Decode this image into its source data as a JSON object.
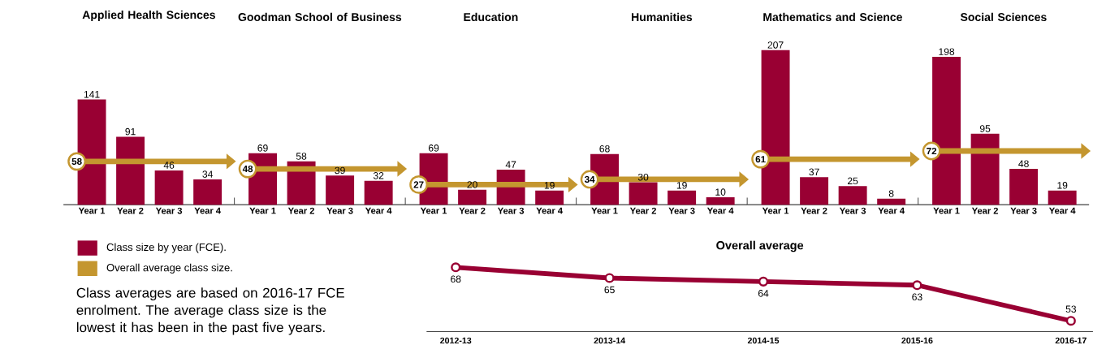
{
  "chart_data": [
    {
      "type": "bar",
      "title": "Applied Health Sciences",
      "categories": [
        "Year 1",
        "Year 2",
        "Year 3",
        "Year 4"
      ],
      "values": [
        141,
        91,
        46,
        34
      ],
      "color": "#990033",
      "data_labels": true,
      "ref_lines": [
        {
          "axis": "y",
          "value": 58,
          "label": "58",
          "color": "#c4962f"
        }
      ]
    },
    {
      "type": "bar",
      "title": "Goodman School of Business",
      "categories": [
        "Year 1",
        "Year 2",
        "Year 3",
        "Year 4"
      ],
      "values": [
        69,
        58,
        39,
        32
      ],
      "color": "#990033",
      "data_labels": true,
      "ref_lines": [
        {
          "axis": "y",
          "value": 48,
          "label": "48",
          "color": "#c4962f"
        }
      ]
    },
    {
      "type": "bar",
      "title": "Education",
      "categories": [
        "Year 1",
        "Year 2",
        "Year 3",
        "Year 4"
      ],
      "values": [
        69,
        20,
        47,
        19
      ],
      "color": "#990033",
      "data_labels": true,
      "ref_lines": [
        {
          "axis": "y",
          "value": 27,
          "label": "27",
          "color": "#c4962f"
        }
      ]
    },
    {
      "type": "bar",
      "title": "Humanities",
      "categories": [
        "Year 1",
        "Year 2",
        "Year 3",
        "Year 4"
      ],
      "values": [
        68,
        30,
        19,
        10
      ],
      "color": "#990033",
      "data_labels": true,
      "ref_lines": [
        {
          "axis": "y",
          "value": 34,
          "label": "34",
          "color": "#c4962f"
        }
      ]
    },
    {
      "type": "bar",
      "title": "Mathematics and Science",
      "categories": [
        "Year 1",
        "Year 2",
        "Year 3",
        "Year 4"
      ],
      "values": [
        207,
        37,
        25,
        8
      ],
      "color": "#990033",
      "data_labels": true,
      "ref_lines": [
        {
          "axis": "y",
          "value": 61,
          "label": "61",
          "color": "#c4962f"
        }
      ]
    },
    {
      "type": "bar",
      "title": "Social Sciences",
      "categories": [
        "Year 1",
        "Year 2",
        "Year 3",
        "Year 4"
      ],
      "values": [
        198,
        95,
        48,
        19
      ],
      "color": "#990033",
      "data_labels": true,
      "ref_lines": [
        {
          "axis": "y",
          "value": 72,
          "label": "72",
          "color": "#c4962f"
        }
      ]
    },
    {
      "type": "line",
      "title": "Overall average",
      "categories": [
        "2012-13",
        "2013-14",
        "2014-15",
        "2015-16",
        "2016-17"
      ],
      "values": [
        68,
        65,
        64,
        63,
        53
      ],
      "color": "#990033",
      "marker": "circle",
      "data_labels": true
    },
    {
      "type": "other",
      "colors": [
        "#990033",
        "#c4962f"
      ],
      "annotations": [
        "Class size by year (FCE).",
        "Overall average class size.",
        "Class averages are based on 2016-17 FCE enrolment. The average class size is the lowest it has been in the past five years."
      ]
    }
  ]
}
